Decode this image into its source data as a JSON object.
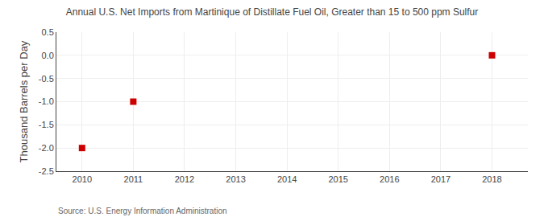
{
  "chart_data": {
    "type": "scatter",
    "title": "Annual U.S. Net Imports from Martinique of Distillate Fuel Oil, Greater than 15 to 500 ppm Sulfur",
    "ylabel": "Thousand Barrels per Day",
    "annotations": [
      "Source: U.S. Energy Information Administration"
    ],
    "x": [
      2010,
      2011,
      2018
    ],
    "values": [
      -2.0,
      -1.0,
      0.0
    ],
    "color": "#cc0000",
    "marker": "square",
    "xlim": [
      2009.5,
      2018.7
    ],
    "ylim": [
      -2.5,
      0.5
    ],
    "xticks": [
      2010,
      2011,
      2012,
      2013,
      2014,
      2015,
      2016,
      2017,
      2018
    ],
    "yticks": [
      0.5,
      {
        "value": 0.0,
        "label": "0.0"
      },
      -0.5,
      {
        "value": -1.0,
        "label": "-1.0"
      },
      -1.5,
      {
        "value": -2.0,
        "label": "-2.0"
      },
      -2.5
    ],
    "grid": true
  }
}
